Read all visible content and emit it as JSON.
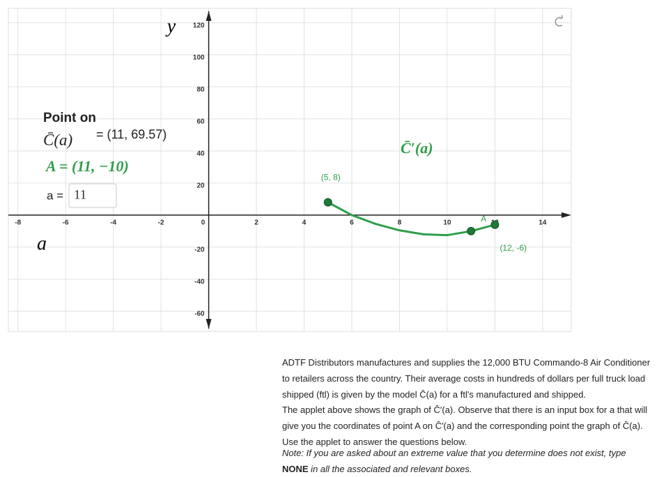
{
  "chart_data": {
    "type": "line",
    "x_label": "a",
    "y_label": "y",
    "x": [
      5,
      6,
      7,
      8,
      9,
      10,
      11,
      12
    ],
    "series": [
      {
        "name": "C̄′(a)",
        "color": "#2e9e4a",
        "values": [
          8,
          0,
          -5.5,
          -9.5,
          -12,
          -12.5,
          -10,
          -6
        ]
      }
    ],
    "points": [
      {
        "label": "(5, 8)",
        "x": 5,
        "y": 8
      },
      {
        "label": "A",
        "x": 11,
        "y": -10
      },
      {
        "label": "(12, -6)",
        "x": 12,
        "y": -6
      }
    ],
    "xlim": [
      -8.4,
      15.2
    ],
    "ylim": [
      -72.6,
      129
    ],
    "xticks": [
      -8,
      -6,
      -4,
      -2,
      0,
      2,
      4,
      6,
      8,
      10,
      12,
      14
    ],
    "yticks": [
      -60,
      -40,
      -20,
      0,
      20,
      40,
      60,
      80,
      100,
      120
    ],
    "grid": true
  },
  "info": {
    "heading": "Point on",
    "function": "C̄(a)",
    "coords": "= (11, 69.57)",
    "point_A": "A = (11, −10)",
    "input_label": "a =",
    "input_value": 11
  },
  "text": {
    "p1": "ADTF Distributors manufactures and supplies the 12,000 BTU Commando-8 Air Conditioner to retailers across the country. Their average costs in hundreds of dollars per full truck load shipped (ftl) is given by the model C̄(a) for a ftl's manufactured and shipped.",
    "p2": "The applet above shows the graph of C̄′(a). Observe that there is an input box for a that will give you the coordinates of point A on C̄′(a) and the corresponding point the graph of C̄(a). Use the applet to answer the questions below.",
    "note": [
      "Note: If you are asked about an extreme value that you determine does not exist, type ",
      "NONE",
      " in all the associated and relevant boxes."
    ]
  }
}
